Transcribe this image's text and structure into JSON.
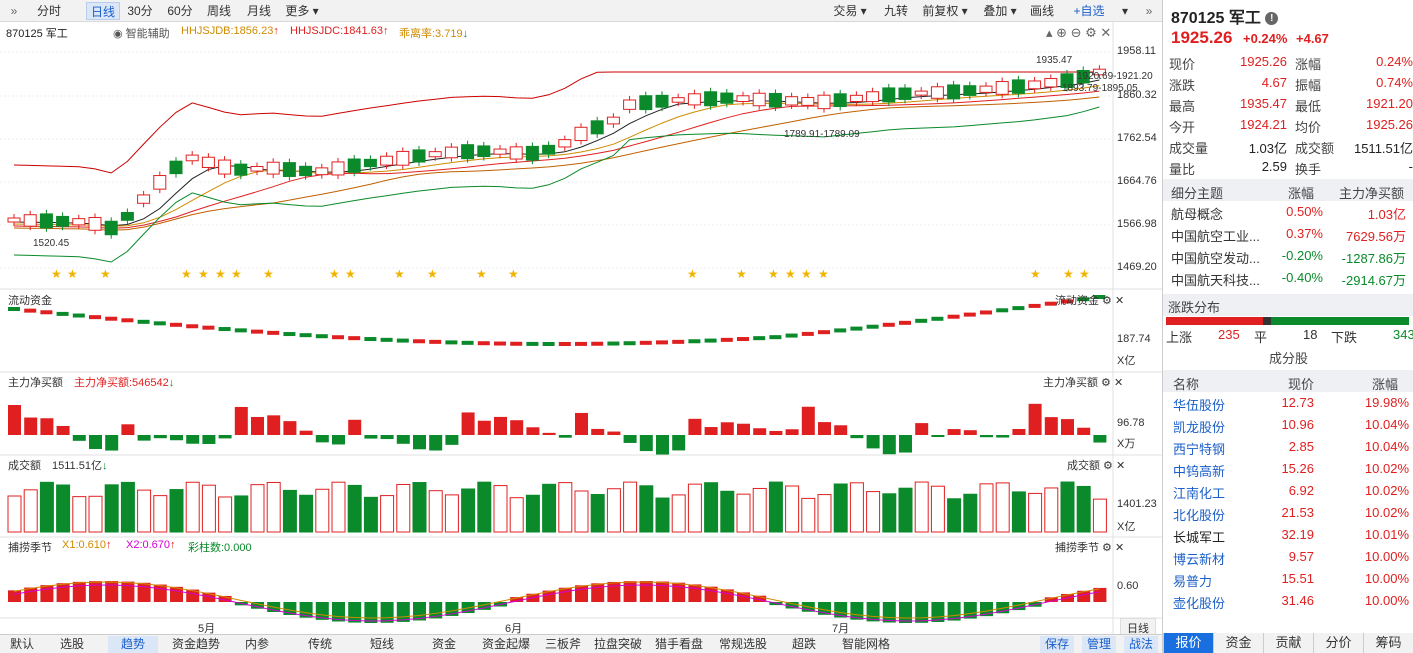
{
  "toolbar": {
    "left": [
      "分时",
      "日线",
      "30分",
      "60分",
      "周线",
      "月线",
      "更多"
    ],
    "right": [
      "交易",
      "九转",
      "前复权",
      "叠加",
      "画线",
      "+自选"
    ]
  },
  "chart": {
    "code_name": "870125 军工",
    "assist": "智能辅助",
    "ind1": "HHJSJDB:1856.23",
    "ind2": "HHJSJDC:1841.63",
    "ind3": "乖离率:3.719",
    "yaxis": [
      "1958.11",
      "1860.32",
      "1762.54",
      "1664.76",
      "1566.98",
      "1469.20"
    ],
    "annot_hi": "1935.47",
    "annot_r1": "1920.69-1921.20",
    "annot_r2": "1893.79-1895.05",
    "annot_mid": "1789.91-1789.09",
    "annot_lo": "1520.45",
    "months": [
      "5月",
      "6月",
      "7月"
    ]
  },
  "panels": {
    "flow_title": "流动资金",
    "flow_axis": "187.74",
    "flow_unit": "X亿",
    "main_title": "主力净买额",
    "main_val": "主力净买额:546542",
    "main_axis": "96.78",
    "main_unit": "X万",
    "vol_title": "成交额",
    "vol_val": "1511.51亿",
    "vol_axis": "1401.23",
    "vol_unit": "X亿",
    "season_title": "捕捞季节",
    "x1": "X1:0.610",
    "x2": "X2:0.670",
    "cz": "彩柱数:0.000",
    "season_axis": "0.60"
  },
  "bottom_tabs": [
    "默认",
    "选股",
    "趋势",
    "资金趋势",
    "内参",
    "传统",
    "短线",
    "资金",
    "资金起爆",
    "三板斧",
    "拉盘突破",
    "猎手看盘",
    "常规选股",
    "超跌",
    "智能网格"
  ],
  "bottom_right": [
    "保存",
    "管理",
    "战法"
  ],
  "period": "日线",
  "quote": {
    "title": "870125 军工",
    "price": "1925.26",
    "chg_pct": "+0.24%",
    "chg": "+4.67",
    "rows": [
      [
        "现价",
        "1925.26",
        "涨幅",
        "0.24%"
      ],
      [
        "涨跌",
        "4.67",
        "振幅",
        "0.74%"
      ],
      [
        "最高",
        "1935.47",
        "最低",
        "1921.20"
      ],
      [
        "今开",
        "1924.21",
        "均价",
        "1925.26"
      ],
      [
        "成交量",
        "1.03亿",
        "成交额",
        "1511.51亿"
      ],
      [
        "量比",
        "2.59",
        "换手",
        "-"
      ]
    ]
  },
  "themes": {
    "header": [
      "细分主题",
      "涨幅",
      "主力净买额"
    ],
    "rows": [
      [
        "航母概念",
        "0.50%",
        "1.03亿"
      ],
      [
        "中国航空工业...",
        "0.37%",
        "7629.56万"
      ],
      [
        "中国航空发动...",
        "-0.20%",
        "-1287.86万"
      ],
      [
        "中国航天科技...",
        "-0.40%",
        "-2914.67万"
      ]
    ]
  },
  "dist": {
    "title": "涨跌分布",
    "up_label": "上涨",
    "up": "235",
    "flat_label": "平",
    "flat": "18",
    "down_label": "下跌",
    "down": "343"
  },
  "components": {
    "title": "成分股",
    "header": [
      "名称",
      "现价",
      "涨幅"
    ],
    "rows": [
      [
        "华伍股份",
        "12.73",
        "19.98%"
      ],
      [
        "凯龙股份",
        "10.96",
        "10.04%"
      ],
      [
        "西宁特钢",
        "2.85",
        "10.04%"
      ],
      [
        "中钨高新",
        "15.26",
        "10.02%"
      ],
      [
        "江南化工",
        "6.92",
        "10.02%"
      ],
      [
        "北化股份",
        "21.53",
        "10.02%"
      ],
      [
        "长城军工",
        "32.19",
        "10.01%"
      ],
      [
        "博云新材",
        "9.57",
        "10.00%"
      ],
      [
        "易普力",
        "15.51",
        "10.00%"
      ],
      [
        "壶化股份",
        "31.46",
        "10.00%"
      ]
    ]
  },
  "right_tabs": [
    "报价",
    "资金",
    "贡献",
    "分价",
    "筹码"
  ],
  "colors": {
    "up": "#e02020",
    "down": "#0a8a2a",
    "accent": "#1a5fc9"
  }
}
